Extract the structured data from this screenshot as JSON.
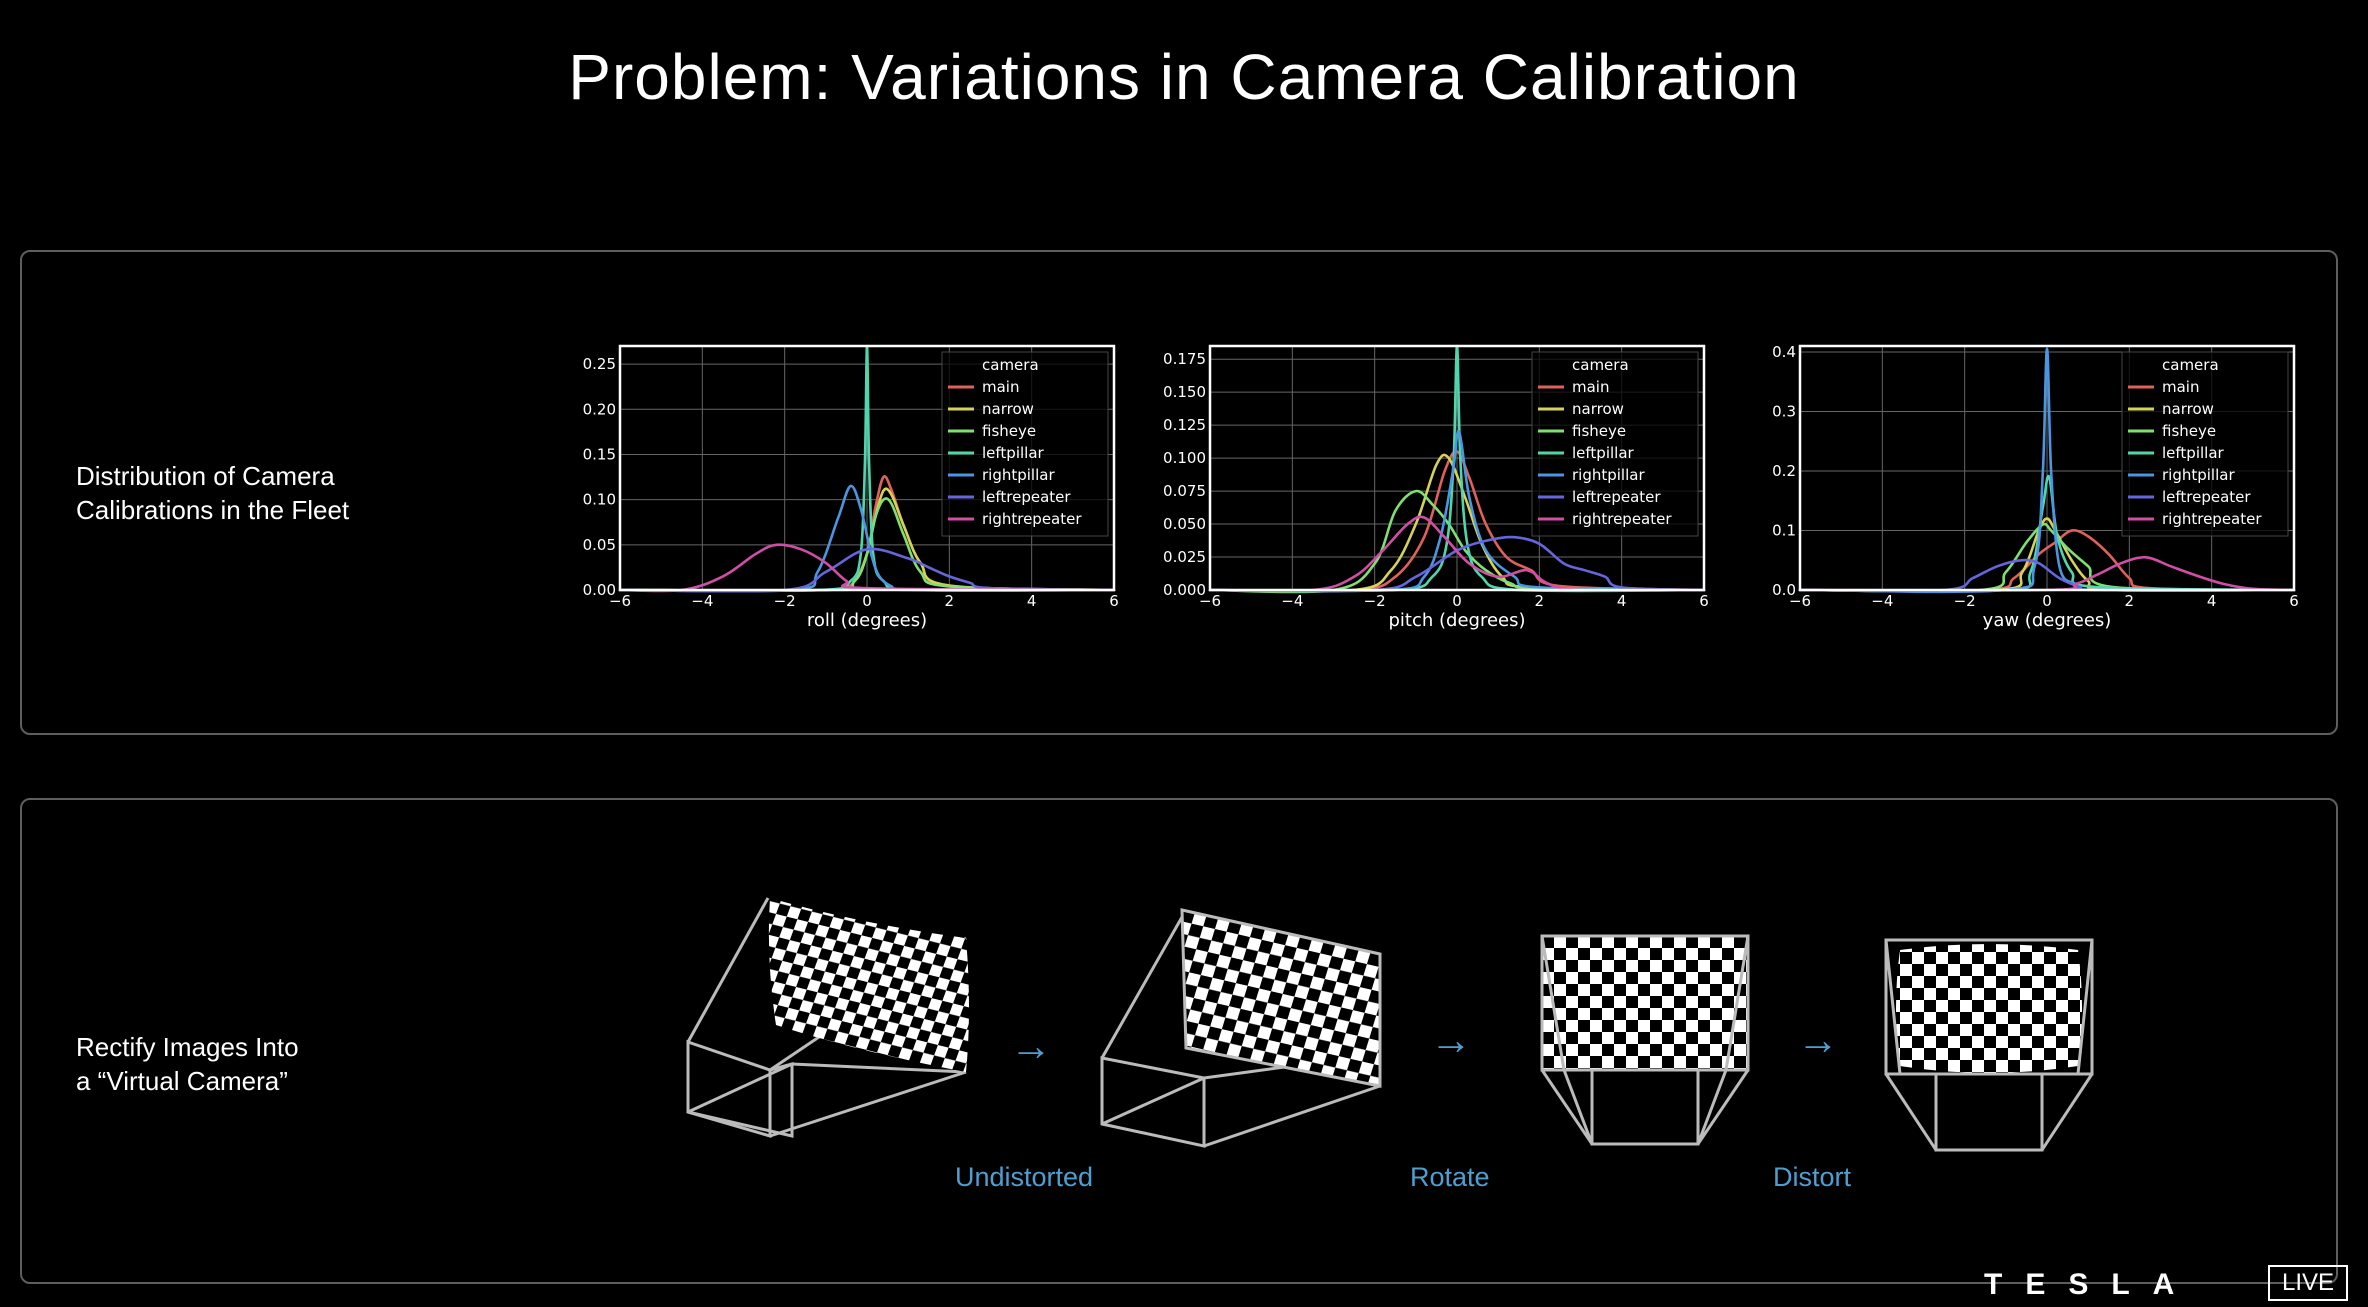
{
  "title": "Problem: Variations in Camera Calibration",
  "top_panel": {
    "label_line1": "Distribution of Camera",
    "label_line2": "Calibrations in the Fleet"
  },
  "bottom_panel": {
    "label_line1": "Rectify Images Into",
    "label_line2": "a “Virtual Camera”",
    "steps": [
      "Undistorted",
      "Rotate",
      "Distort"
    ]
  },
  "footer": {
    "brand": "TESLA",
    "badge": "LIVE"
  },
  "colors": {
    "main": "#e0605a",
    "narrow": "#d6d257",
    "fisheye": "#7ee070",
    "leftpillar": "#4fd6ad",
    "rightpillar": "#4b96e0",
    "leftrepeater": "#6565dc",
    "rightrepeater": "#d04ea6",
    "accent": "#4e9fd1"
  },
  "chart_data": [
    {
      "type": "line",
      "xlabel": "roll (degrees)",
      "xlim": [
        -6,
        6
      ],
      "ylim": [
        0,
        0.27
      ],
      "xticks": [
        -6,
        -4,
        -2,
        0,
        2,
        4,
        6
      ],
      "xtick_labels": [
        "−6",
        "−4",
        "−2",
        "0",
        "2",
        "4",
        "6"
      ],
      "yticks": [
        0,
        0.05,
        0.1,
        0.15,
        0.2,
        0.25
      ],
      "ytick_labels": [
        "0.00",
        "0.05",
        "0.10",
        "0.15",
        "0.20",
        "0.25"
      ],
      "grid": true,
      "legend": {
        "title": "camera",
        "position": "top-right"
      },
      "series": [
        {
          "name": "main",
          "x": [
            -6,
            -1,
            -0.4,
            0,
            0.2,
            0.4,
            0.6,
            0.9,
            1.3,
            2,
            6
          ],
          "y": [
            0,
            0,
            0.005,
            0.04,
            0.09,
            0.125,
            0.11,
            0.07,
            0.03,
            0.004,
            0
          ]
        },
        {
          "name": "narrow",
          "x": [
            -6,
            -1,
            -0.3,
            0,
            0.2,
            0.4,
            0.6,
            0.9,
            1.3,
            2,
            6
          ],
          "y": [
            0,
            0,
            0.01,
            0.04,
            0.08,
            0.11,
            0.105,
            0.07,
            0.03,
            0.005,
            0
          ]
        },
        {
          "name": "fisheye",
          "x": [
            -6,
            -1,
            -0.3,
            0,
            0.2,
            0.4,
            0.6,
            0.9,
            1.3,
            2,
            6
          ],
          "y": [
            0,
            0,
            0.01,
            0.04,
            0.08,
            0.1,
            0.095,
            0.06,
            0.02,
            0.004,
            0
          ]
        },
        {
          "name": "leftpillar",
          "x": [
            -6,
            -1.2,
            -0.4,
            -0.15,
            -0.05,
            0,
            0.05,
            0.15,
            0.4,
            1.2,
            6
          ],
          "y": [
            0,
            0,
            0.01,
            0.04,
            0.14,
            0.27,
            0.14,
            0.04,
            0.01,
            0,
            0
          ]
        },
        {
          "name": "rightpillar",
          "x": [
            -6,
            -1.8,
            -1.2,
            -0.7,
            -0.4,
            -0.15,
            0.1,
            0.3,
            0.6,
            1,
            6
          ],
          "y": [
            0,
            0,
            0.02,
            0.08,
            0.115,
            0.09,
            0.04,
            0.015,
            0.004,
            0,
            0
          ]
        },
        {
          "name": "leftrepeater",
          "x": [
            -6,
            -2,
            -1,
            0,
            1,
            1.5,
            2,
            2.5,
            3,
            6
          ],
          "y": [
            0,
            0,
            0.02,
            0.045,
            0.035,
            0.025,
            0.015,
            0.008,
            0.002,
            0
          ]
        },
        {
          "name": "rightrepeater",
          "x": [
            -6,
            -4.5,
            -3.5,
            -2.7,
            -2.2,
            -1.6,
            -1,
            -0.5,
            0,
            6
          ],
          "y": [
            0,
            0,
            0.015,
            0.04,
            0.05,
            0.045,
            0.03,
            0.01,
            0.002,
            0
          ]
        }
      ]
    },
    {
      "type": "line",
      "xlabel": "pitch (degrees)",
      "xlim": [
        -6,
        6
      ],
      "ylim": [
        0,
        0.185
      ],
      "xticks": [
        -6,
        -4,
        -2,
        0,
        2,
        4,
        6
      ],
      "xtick_labels": [
        "−6",
        "−4",
        "−2",
        "0",
        "2",
        "4",
        "6"
      ],
      "yticks": [
        0,
        0.025,
        0.05,
        0.075,
        0.1,
        0.125,
        0.15,
        0.175
      ],
      "ytick_labels": [
        "0.000",
        "0.025",
        "0.050",
        "0.075",
        "0.100",
        "0.125",
        "0.150",
        "0.175"
      ],
      "grid": true,
      "legend": {
        "title": "camera",
        "position": "top-right"
      },
      "series": [
        {
          "name": "main",
          "x": [
            -6,
            -2.5,
            -1.5,
            -0.8,
            -0.3,
            0,
            0.3,
            0.7,
            1.2,
            1.8,
            2.5,
            6
          ],
          "y": [
            0,
            0,
            0.01,
            0.04,
            0.09,
            0.105,
            0.085,
            0.05,
            0.025,
            0.015,
            0.003,
            0
          ]
        },
        {
          "name": "narrow",
          "x": [
            -6,
            -2.5,
            -1.6,
            -1,
            -0.5,
            -0.2,
            0.2,
            0.6,
            1.1,
            1.8,
            6
          ],
          "y": [
            0,
            0,
            0.015,
            0.05,
            0.095,
            0.1,
            0.07,
            0.035,
            0.01,
            0.002,
            0
          ]
        },
        {
          "name": "fisheye",
          "x": [
            -6,
            -3,
            -2,
            -1.5,
            -1,
            -0.6,
            -0.2,
            0.2,
            0.7,
            1.3,
            2,
            6
          ],
          "y": [
            0,
            0,
            0.02,
            0.06,
            0.075,
            0.065,
            0.05,
            0.03,
            0.015,
            0.005,
            0.001,
            0
          ]
        },
        {
          "name": "leftpillar",
          "x": [
            -6,
            -1.5,
            -0.6,
            -0.25,
            -0.08,
            0,
            0.08,
            0.25,
            0.6,
            1.5,
            6
          ],
          "y": [
            0,
            0,
            0.01,
            0.035,
            0.1,
            0.185,
            0.1,
            0.035,
            0.01,
            0,
            0
          ]
        },
        {
          "name": "rightpillar",
          "x": [
            -6,
            -1.6,
            -0.8,
            -0.4,
            -0.1,
            0.05,
            0.3,
            0.7,
            1.4,
            2,
            6
          ],
          "y": [
            0,
            0,
            0.01,
            0.04,
            0.09,
            0.12,
            0.07,
            0.03,
            0.01,
            0.002,
            0
          ]
        },
        {
          "name": "leftrepeater",
          "x": [
            -6,
            -2,
            -1,
            0,
            0.8,
            1.4,
            2,
            2.6,
            3.1,
            3.6,
            4,
            6
          ],
          "y": [
            0,
            0,
            0.01,
            0.03,
            0.038,
            0.04,
            0.035,
            0.02,
            0.015,
            0.01,
            0.002,
            0
          ]
        },
        {
          "name": "rightrepeater",
          "x": [
            -6,
            -3.5,
            -2.5,
            -1.8,
            -1.2,
            -0.8,
            -0.3,
            0.3,
            1,
            1.7,
            2.2,
            3,
            6
          ],
          "y": [
            0,
            0,
            0.01,
            0.03,
            0.05,
            0.055,
            0.04,
            0.02,
            0.01,
            0.015,
            0.005,
            0,
            0
          ]
        }
      ]
    },
    {
      "type": "line",
      "xlabel": "yaw (degrees)",
      "xlim": [
        -6,
        6
      ],
      "ylim": [
        0,
        0.41
      ],
      "xticks": [
        -6,
        -4,
        -2,
        0,
        2,
        4,
        6
      ],
      "xtick_labels": [
        "−6",
        "−4",
        "−2",
        "0",
        "2",
        "4",
        "6"
      ],
      "yticks": [
        0,
        0.1,
        0.2,
        0.3,
        0.4
      ],
      "ytick_labels": [
        "0.0",
        "0.1",
        "0.2",
        "0.3",
        "0.4"
      ],
      "grid": true,
      "legend": {
        "title": "camera",
        "position": "top-right"
      },
      "series": [
        {
          "name": "main",
          "x": [
            -6,
            -1.5,
            -0.8,
            -0.2,
            0.2,
            0.6,
            1,
            1.5,
            2,
            2.5,
            6
          ],
          "y": [
            0,
            0,
            0.02,
            0.06,
            0.08,
            0.1,
            0.09,
            0.06,
            0.02,
            0.003,
            0
          ]
        },
        {
          "name": "narrow",
          "x": [
            -6,
            -1.2,
            -0.6,
            -0.2,
            0,
            0.2,
            0.6,
            1,
            1.5,
            6
          ],
          "y": [
            0,
            0,
            0.03,
            0.1,
            0.12,
            0.1,
            0.05,
            0.015,
            0,
            0
          ]
        },
        {
          "name": "fisheye",
          "x": [
            -6,
            -1.6,
            -1,
            -0.5,
            -0.1,
            0.1,
            0.5,
            1,
            1.6,
            6
          ],
          "y": [
            0,
            0,
            0.03,
            0.08,
            0.11,
            0.1,
            0.07,
            0.04,
            0.005,
            0
          ]
        },
        {
          "name": "leftpillar",
          "x": [
            -6,
            -1,
            -0.4,
            -0.1,
            0.05,
            0.25,
            0.6,
            1.2,
            6
          ],
          "y": [
            0,
            0,
            0.03,
            0.14,
            0.19,
            0.09,
            0.03,
            0.005,
            0
          ]
        },
        {
          "name": "rightpillar",
          "x": [
            -6,
            -1,
            -0.3,
            -0.1,
            0,
            0.1,
            0.3,
            0.7,
            1.2,
            6
          ],
          "y": [
            0,
            0,
            0.04,
            0.2,
            0.405,
            0.2,
            0.04,
            0.01,
            0,
            0
          ]
        },
        {
          "name": "leftrepeater",
          "x": [
            -6,
            -2.5,
            -1.8,
            -1.2,
            -0.6,
            -0.2,
            0.3,
            0.8,
            1.2,
            6
          ],
          "y": [
            0,
            0,
            0.02,
            0.04,
            0.05,
            0.045,
            0.02,
            0.005,
            0,
            0
          ]
        },
        {
          "name": "rightrepeater",
          "x": [
            -6,
            0,
            0.7,
            1.2,
            1.8,
            2.4,
            3,
            3.6,
            4.3,
            5,
            6
          ],
          "y": [
            0,
            0,
            0.01,
            0.025,
            0.045,
            0.055,
            0.04,
            0.025,
            0.01,
            0.002,
            0
          ]
        }
      ]
    }
  ]
}
